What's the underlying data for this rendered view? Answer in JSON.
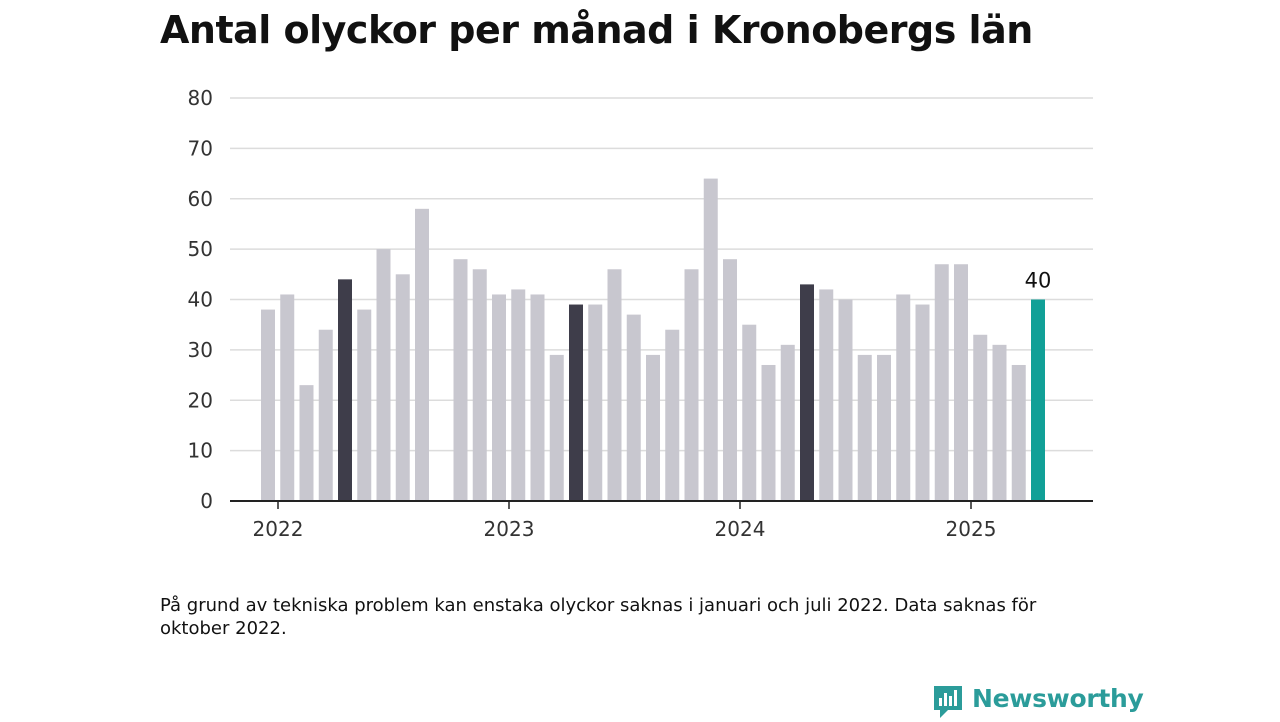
{
  "title": "Antal olyckor per månad i Kronobergs län",
  "note": "På grund av tekniska problem kan enstaka olyckor saknas i januari och juli 2022. Data saknas för oktober 2022.",
  "brand": {
    "name": "Newsworthy",
    "icon": "newsworthy-logo-icon",
    "color": "#2b9c9a"
  },
  "colors": {
    "bar": "#c8c7cf",
    "highlight": "#3e3d4a",
    "latest": "#11a097",
    "grid": "#dcdcdc",
    "axis": "#222222"
  },
  "chart_data": {
    "type": "bar",
    "title": "Antal olyckor per månad i Kronobergs län",
    "xlabel": "",
    "ylabel": "",
    "ylim": [
      0,
      80
    ],
    "yticks": [
      0,
      10,
      20,
      30,
      40,
      50,
      60,
      70,
      80
    ],
    "xticks": [
      "2022",
      "2023",
      "2024",
      "2025"
    ],
    "grid": true,
    "categories": [
      "2022-01",
      "2022-02",
      "2022-03",
      "2022-04",
      "2022-05",
      "2022-06",
      "2022-07",
      "2022-08",
      "2022-09",
      "2022-10",
      "2022-11",
      "2022-12",
      "2023-01",
      "2023-02",
      "2023-03",
      "2023-04",
      "2023-05",
      "2023-06",
      "2023-07",
      "2023-08",
      "2023-09",
      "2023-10",
      "2023-11",
      "2023-12",
      "2024-01",
      "2024-02",
      "2024-03",
      "2024-04",
      "2024-05",
      "2024-06",
      "2024-07",
      "2024-08",
      "2024-09",
      "2024-10",
      "2024-11",
      "2024-12",
      "2025-01",
      "2025-02",
      "2025-03",
      "2025-04",
      "2025-05"
    ],
    "values": [
      38,
      41,
      23,
      34,
      44,
      38,
      50,
      45,
      58,
      null,
      48,
      46,
      41,
      42,
      41,
      29,
      39,
      39,
      46,
      37,
      29,
      34,
      46,
      64,
      48,
      35,
      27,
      31,
      43,
      42,
      40,
      29,
      29,
      41,
      39,
      47,
      47,
      33,
      31,
      27,
      40
    ],
    "highlighted": [
      "2022-05",
      "2023-05",
      "2024-05"
    ],
    "latest": "2025-05",
    "data_labels": [
      {
        "category": "2025-05",
        "text": "40"
      }
    ]
  }
}
